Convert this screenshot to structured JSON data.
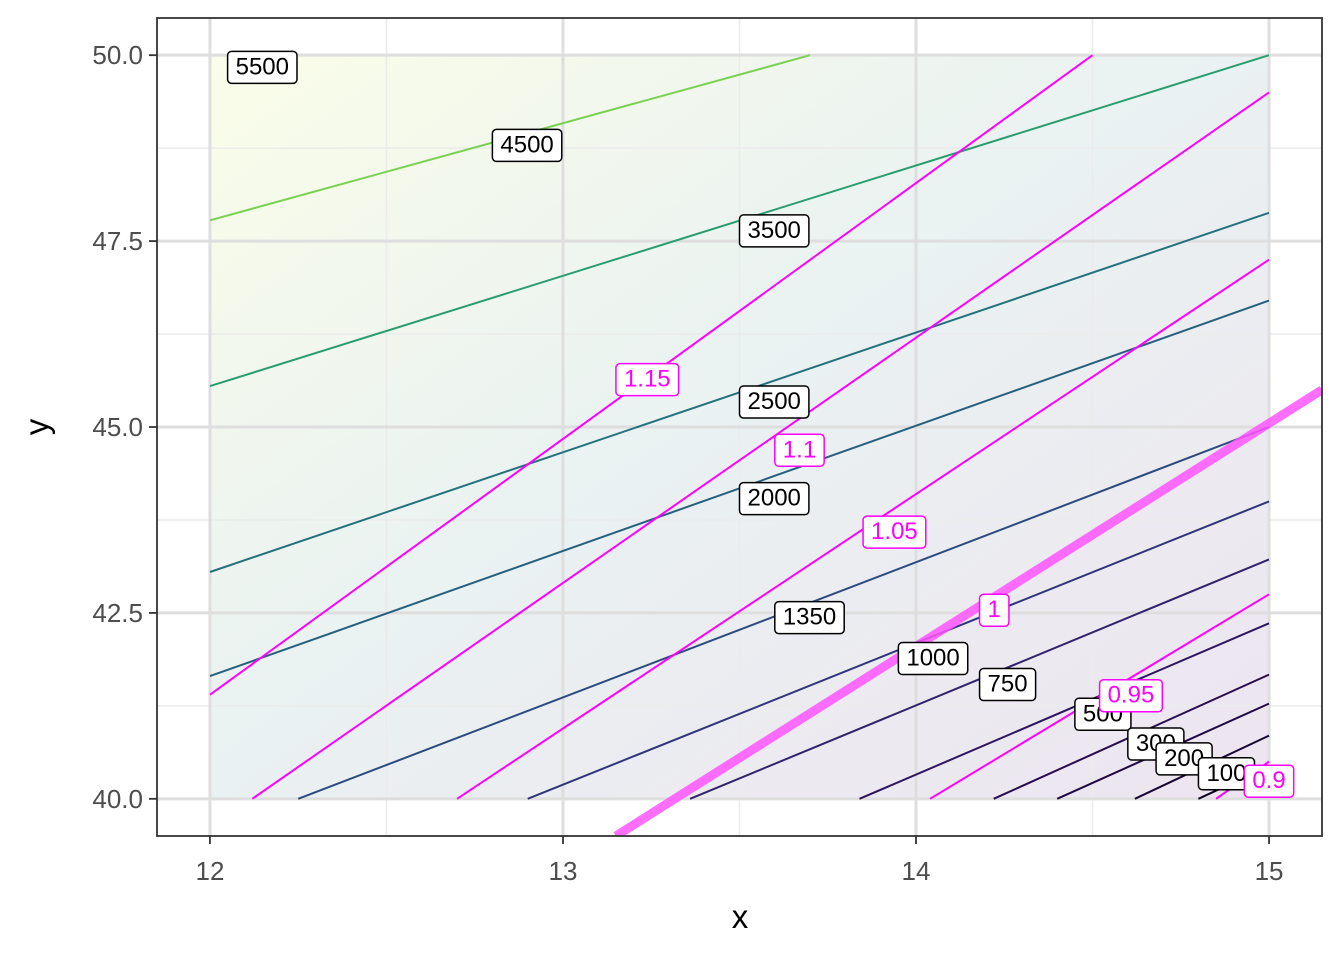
{
  "chart_data": {
    "type": "contour",
    "xlabel": "x",
    "ylabel": "y",
    "xlim": [
      11.85,
      15.15
    ],
    "ylim": [
      39.5,
      50.5
    ],
    "x_ticks": [
      12,
      13,
      14,
      15
    ],
    "x_tick_labels": [
      "12",
      "13",
      "14",
      "15"
    ],
    "y_ticks": [
      40.0,
      42.5,
      45.0,
      47.5,
      50.0
    ],
    "y_tick_labels": [
      "40.0",
      "42.5",
      "45.0",
      "47.5",
      "50.0"
    ],
    "grid": true,
    "legend": "none",
    "colors": {
      "ratio_lines": "#ff00ff",
      "ratio_highlight": "#ff55ff",
      "label_border": "#000000"
    },
    "contour_series": [
      {
        "level": "5500",
        "color": "#7ad151",
        "points": [
          [
            12.0,
            47.78
          ],
          [
            13.7,
            50.0
          ]
        ],
        "label_at": [
          12.05,
          49.85
        ]
      },
      {
        "level": "4500",
        "color": "#2a9d6f",
        "points": [
          [
            12.0,
            45.55
          ],
          [
            15.0,
            50.0
          ]
        ],
        "label_at": [
          12.8,
          48.8
        ]
      },
      {
        "level": "3500",
        "color": "#23727e",
        "points": [
          [
            12.0,
            43.05
          ],
          [
            15.0,
            47.88
          ]
        ],
        "label_at": [
          13.5,
          47.65
        ]
      },
      {
        "level": "2500",
        "color": "#26607f",
        "points": [
          [
            12.0,
            41.65
          ],
          [
            15.0,
            46.7
          ]
        ],
        "label_at": [
          13.5,
          45.35
        ]
      },
      {
        "level": "2000",
        "color": "#2b4b80",
        "points": [
          [
            12.25,
            40.0
          ],
          [
            15.0,
            45.0
          ]
        ],
        "label_at": [
          13.5,
          44.05
        ]
      },
      {
        "level": "1350",
        "color": "#30347a",
        "points": [
          [
            12.9,
            40.0
          ],
          [
            15.0,
            44.0
          ]
        ],
        "label_at": [
          13.6,
          42.45
        ]
      },
      {
        "level": "1000",
        "color": "#31226b",
        "points": [
          [
            13.36,
            40.0
          ],
          [
            15.0,
            43.22
          ]
        ],
        "label_at": [
          13.95,
          41.9
        ]
      },
      {
        "level": "750",
        "color": "#2d1560",
        "points": [
          [
            13.84,
            40.0
          ],
          [
            15.0,
            42.36
          ]
        ],
        "label_at": [
          14.18,
          41.55
        ]
      },
      {
        "level": "500",
        "color": "#270c50",
        "points": [
          [
            14.22,
            40.0
          ],
          [
            15.0,
            41.67
          ]
        ],
        "label_at": [
          14.45,
          41.15
        ]
      },
      {
        "level": "300",
        "color": "#1f0842",
        "points": [
          [
            14.4,
            40.0
          ],
          [
            15.0,
            41.28
          ]
        ],
        "label_at": [
          14.6,
          40.75
        ]
      },
      {
        "level": "200",
        "color": "#170533",
        "points": [
          [
            14.62,
            40.0
          ],
          [
            15.0,
            40.85
          ]
        ],
        "label_at": [
          14.68,
          40.55
        ]
      },
      {
        "level": "100",
        "color": "#0d0221",
        "points": [
          [
            14.8,
            40.0
          ],
          [
            15.0,
            40.44
          ]
        ],
        "label_at": [
          14.8,
          40.35
        ]
      }
    ],
    "ratio_series": [
      {
        "level": "1.15",
        "points": [
          [
            12.0,
            41.4
          ],
          [
            14.5,
            50.0
          ]
        ],
        "label_at": [
          13.15,
          45.65
        ]
      },
      {
        "level": "1.1",
        "points": [
          [
            12.12,
            40.0
          ],
          [
            15.0,
            49.5
          ]
        ],
        "label_at": [
          13.6,
          44.7
        ]
      },
      {
        "level": "1.05",
        "points": [
          [
            12.7,
            40.0
          ],
          [
            15.0,
            47.25
          ]
        ],
        "label_at": [
          13.85,
          43.6
        ]
      },
      {
        "level": "1",
        "points": [
          [
            13.15,
            39.5
          ],
          [
            15.15,
            45.5
          ]
        ],
        "label_at": [
          14.18,
          42.55
        ],
        "highlight": true
      },
      {
        "level": "0.95",
        "points": [
          [
            14.04,
            40.0
          ],
          [
            15.0,
            42.75
          ]
        ],
        "label_at": [
          14.52,
          41.4
        ]
      },
      {
        "level": "0.9",
        "points": [
          [
            14.85,
            40.0
          ],
          [
            15.0,
            40.5
          ]
        ],
        "label_at": [
          14.93,
          40.25
        ]
      }
    ]
  }
}
